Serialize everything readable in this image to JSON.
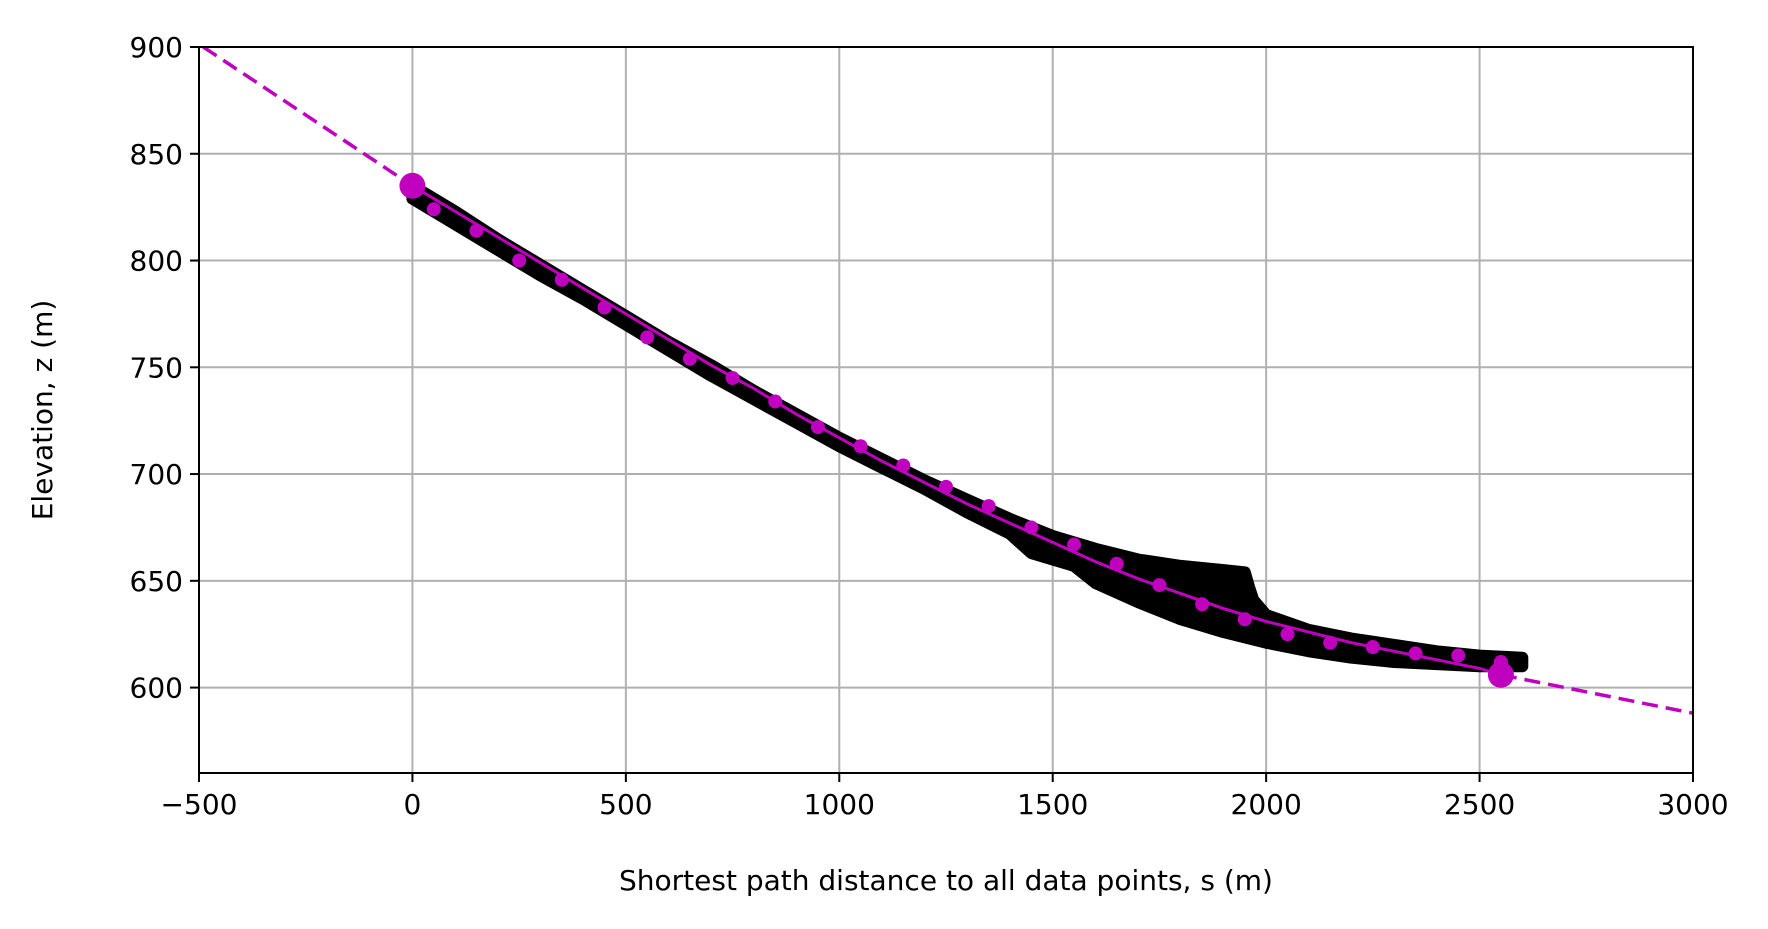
{
  "chart_data": {
    "type": "scatter",
    "title": "",
    "xlabel": "Shortest path distance to all data points, s (m)",
    "ylabel": "Elevation, z (m)",
    "xlim": [
      -500,
      3000
    ],
    "ylim": [
      560,
      900
    ],
    "xticks": [
      -500,
      0,
      500,
      1000,
      1500,
      2000,
      2500,
      3000
    ],
    "xtick_labels": [
      "−500",
      "0",
      "500",
      "1000",
      "1500",
      "2000",
      "2500",
      "3000"
    ],
    "yticks": [
      600,
      650,
      700,
      750,
      800,
      850,
      900
    ],
    "ytick_labels": [
      "600",
      "650",
      "700",
      "750",
      "800",
      "850",
      "900"
    ],
    "grid": true,
    "legend": "none",
    "colors": {
      "data": "#000000",
      "fit": "#bf00bf",
      "grid": "#b0b0b0"
    },
    "series": [
      {
        "kind": "scatter_band",
        "color": "#000000",
        "upper": [
          [
            0,
            835
          ],
          [
            100,
            823
          ],
          [
            200,
            810
          ],
          [
            300,
            798
          ],
          [
            400,
            786
          ],
          [
            500,
            774
          ],
          [
            600,
            762
          ],
          [
            700,
            751
          ],
          [
            800,
            739
          ],
          [
            900,
            728
          ],
          [
            1000,
            717
          ],
          [
            1100,
            707
          ],
          [
            1200,
            697
          ],
          [
            1300,
            688
          ],
          [
            1400,
            679
          ],
          [
            1500,
            671
          ],
          [
            1600,
            665
          ],
          [
            1700,
            660
          ],
          [
            1800,
            657
          ],
          [
            1900,
            655
          ],
          [
            1950,
            654
          ],
          [
            1960,
            647
          ],
          [
            1970,
            641
          ],
          [
            2000,
            634
          ],
          [
            2100,
            627
          ],
          [
            2200,
            623
          ],
          [
            2300,
            620
          ],
          [
            2400,
            617
          ],
          [
            2500,
            615
          ],
          [
            2600,
            614
          ]
        ],
        "lower": [
          [
            2600,
            610
          ],
          [
            2500,
            610
          ],
          [
            2400,
            611
          ],
          [
            2300,
            612
          ],
          [
            2200,
            614
          ],
          [
            2100,
            617
          ],
          [
            2000,
            621
          ],
          [
            1900,
            626
          ],
          [
            1800,
            632
          ],
          [
            1700,
            640
          ],
          [
            1600,
            649
          ],
          [
            1550,
            657
          ],
          [
            1500,
            660
          ],
          [
            1450,
            663
          ],
          [
            1400,
            672
          ],
          [
            1300,
            682
          ],
          [
            1200,
            693
          ],
          [
            1100,
            703
          ],
          [
            1000,
            713
          ],
          [
            900,
            724
          ],
          [
            800,
            735
          ],
          [
            700,
            746
          ],
          [
            600,
            758
          ],
          [
            500,
            770
          ],
          [
            400,
            782
          ],
          [
            300,
            793
          ],
          [
            200,
            805
          ],
          [
            100,
            817
          ],
          [
            0,
            829
          ]
        ]
      },
      {
        "kind": "fit_line",
        "color": "#bf00bf",
        "points": [
          [
            0,
            835
          ],
          [
            100,
            823
          ],
          [
            200,
            811
          ],
          [
            300,
            799
          ],
          [
            400,
            787
          ],
          [
            500,
            775
          ],
          [
            600,
            763
          ],
          [
            700,
            751
          ],
          [
            800,
            740
          ],
          [
            900,
            728
          ],
          [
            1000,
            717
          ],
          [
            1100,
            706
          ],
          [
            1200,
            696
          ],
          [
            1300,
            686
          ],
          [
            1400,
            677
          ],
          [
            1500,
            668
          ],
          [
            1600,
            659
          ],
          [
            1700,
            651
          ],
          [
            1800,
            644
          ],
          [
            1900,
            637
          ],
          [
            2000,
            631
          ],
          [
            2100,
            626
          ],
          [
            2200,
            621
          ],
          [
            2300,
            617
          ],
          [
            2400,
            613
          ],
          [
            2500,
            609
          ],
          [
            2550,
            606
          ]
        ]
      },
      {
        "kind": "extrapolation_dashed",
        "color": "#bf00bf",
        "segments": [
          [
            [
              -490,
              900
            ],
            [
              0,
              835
            ]
          ],
          [
            [
              2550,
              606
            ],
            [
              3000,
              588
            ]
          ]
        ]
      },
      {
        "kind": "sample_points",
        "color": "#bf00bf",
        "x": [
          50,
          150,
          250,
          350,
          450,
          550,
          650,
          750,
          850,
          950,
          1050,
          1150,
          1250,
          1350,
          1450,
          1550,
          1650,
          1750,
          1850,
          1950,
          2050,
          2150,
          2250,
          2350,
          2450,
          2550
        ],
        "y": [
          824,
          814,
          800,
          791,
          778,
          764,
          754,
          745,
          734,
          722,
          713,
          704,
          694,
          685,
          675,
          667,
          658,
          648,
          639,
          632,
          625,
          621,
          619,
          616,
          615,
          612
        ]
      },
      {
        "kind": "endpoints",
        "color": "#bf00bf",
        "x": [
          0,
          2550
        ],
        "y": [
          835,
          606
        ]
      }
    ]
  }
}
